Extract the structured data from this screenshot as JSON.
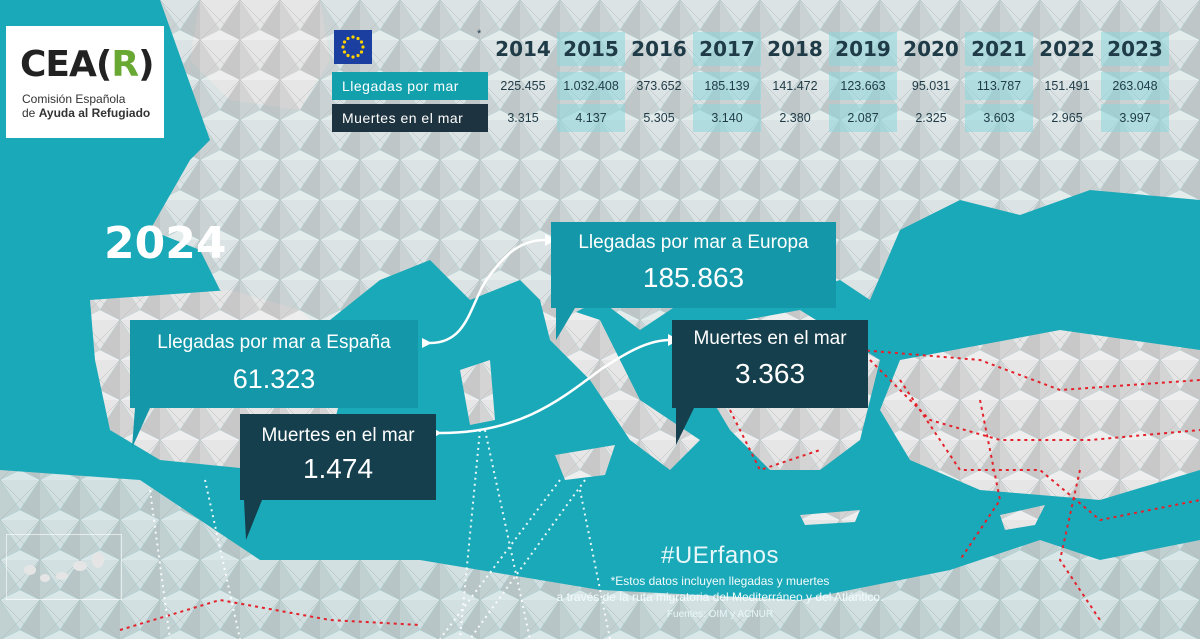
{
  "logo": {
    "mark_pre": "CEA(",
    "mark_r": "R",
    "mark_post": ")",
    "line1": "Comisión Española",
    "line2_pre": "de ",
    "line2_bold": "Ayuda al Refugiado"
  },
  "table": {
    "asterisk": "*",
    "years": [
      "2014",
      "2015",
      "2016",
      "2017",
      "2018",
      "2019",
      "2020",
      "2021",
      "2022",
      "2023"
    ],
    "row_arrivals_label": "Llegadas por mar",
    "row_deaths_label": "Muertes en el mar",
    "arrivals": [
      "225.455",
      "1.032.408",
      "373.652",
      "185.139",
      "141.472",
      "123.663",
      "95.031",
      "113.787",
      "151.491",
      "263.048"
    ],
    "deaths": [
      "3.315",
      "4.137",
      "5.305",
      "3.140",
      "2.380",
      "2.087",
      "2.325",
      "3.603",
      "2.965",
      "3.997"
    ]
  },
  "year_2024": "2024",
  "boxes": {
    "spain_arrivals": {
      "title": "Llegadas por mar a España",
      "value": "61.323"
    },
    "europe_arrivals": {
      "title": "Llegadas por mar a Europa",
      "value": "185.863"
    },
    "spain_deaths": {
      "title": "Muertes en el mar",
      "value": "1.474"
    },
    "europe_deaths": {
      "title": "Muertes en el mar",
      "value": "3.363"
    }
  },
  "footer": {
    "hashtag": "#UErfanos",
    "note_line1": "*Estos datos incluyen llegadas y muertes",
    "note_line2": "a través de la ruta migratoria del Mediterráneo y del Atlántico.",
    "sources": "Fuentes: OIM y ACNUR"
  },
  "colors": {
    "sea": "#1aa9b8",
    "teal_box": "#1497a8",
    "dark_box": "#163f4d",
    "route_line": "#e3222b",
    "logo_accent": "#6aa834"
  }
}
